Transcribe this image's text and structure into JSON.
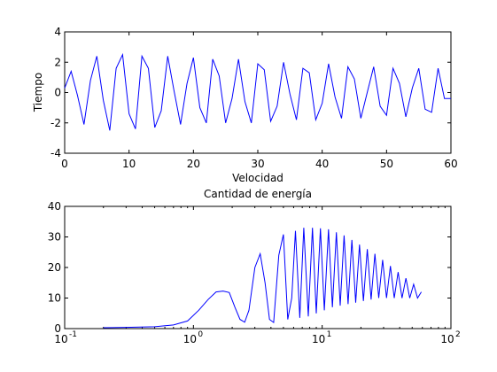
{
  "chart_data": [
    {
      "type": "line",
      "title": "",
      "xlabel": "Velocidad",
      "ylabel": "Tiempo",
      "xscale": "linear",
      "xlim": [
        0,
        60
      ],
      "ylim": [
        -4,
        4
      ],
      "xticks": [
        0,
        10,
        20,
        30,
        40,
        50,
        60
      ],
      "yticks": [
        -4,
        -2,
        0,
        2,
        4
      ],
      "grid": false,
      "legend": "none",
      "color": "#0000ff",
      "x": [
        0,
        1.0,
        2.0,
        3.0,
        4.0,
        5.0,
        6.0,
        7.0,
        8.0,
        9.0,
        10.0,
        11.0,
        12.0,
        13.0,
        14.0,
        15.0,
        16.0,
        17.0,
        18.0,
        19.0,
        20.0,
        21.0,
        22.0,
        23.0,
        24.0,
        25.0,
        26.0,
        27.0,
        28.0,
        29.0,
        30.0,
        31.0,
        32.0,
        33.0,
        34.0,
        35.0,
        36.0,
        37.0,
        38.0,
        39.0,
        40.0,
        41.0,
        42.0,
        43.0,
        44.0,
        45.0,
        46.0,
        47.0,
        48.0,
        49.0,
        50.0,
        51.0,
        52.0,
        53.0,
        54.0,
        55.0,
        56.0,
        57.0,
        58.0,
        59.0,
        60.0
      ],
      "y": [
        0.3,
        1.4,
        -0.2,
        -2.1,
        0.8,
        2.4,
        -0.5,
        -2.5,
        1.6,
        2.5,
        -1.4,
        -2.4,
        2.4,
        1.6,
        -2.3,
        -1.2,
        2.4,
        0.1,
        -2.1,
        0.6,
        2.3,
        -1.0,
        -2.0,
        2.2,
        1.1,
        -2.0,
        -0.4,
        2.2,
        -0.6,
        -2.0,
        1.9,
        1.5,
        -1.9,
        -0.9,
        2.0,
        -0.1,
        -1.8,
        1.6,
        1.3,
        -1.8,
        -0.7,
        1.9,
        -0.3,
        -1.7,
        1.7,
        0.9,
        -1.7,
        0.0,
        1.7,
        -0.9,
        -1.5,
        1.6,
        0.6,
        -1.6,
        0.3,
        1.6,
        -1.1,
        -1.3,
        1.6,
        -0.4,
        -0.4
      ]
    },
    {
      "type": "line",
      "title": "Cantidad de energía",
      "xlabel": "",
      "ylabel": "",
      "xscale": "log",
      "xlim": [
        0.1,
        100
      ],
      "ylim": [
        0,
        40
      ],
      "xticks": [
        0.1,
        1,
        10,
        100
      ],
      "xtick_labels": [
        [
          "10",
          "-1"
        ],
        [
          "10",
          "0"
        ],
        [
          "10",
          "1"
        ],
        [
          "10",
          "2"
        ]
      ],
      "yticks": [
        0,
        10,
        20,
        30,
        40
      ],
      "grid": false,
      "legend": "none",
      "color": "#0000ff",
      "x": [
        0.2,
        0.3,
        0.5,
        0.7,
        0.9,
        1.1,
        1.3,
        1.5,
        1.7,
        1.9,
        2.1,
        2.3,
        2.5,
        2.7,
        3.0,
        3.3,
        3.6,
        3.9,
        4.2,
        4.6,
        5.0,
        5.4,
        5.8,
        6.2,
        6.7,
        7.2,
        7.8,
        8.4,
        9.0,
        9.7,
        10.4,
        11.2,
        12.0,
        12.9,
        13.8,
        14.8,
        15.9,
        17.0,
        18.2,
        19.5,
        20.9,
        22.4,
        24.0,
        25.7,
        27.5,
        29.5,
        31.6,
        33.9,
        36.3,
        38.9,
        41.7,
        44.7,
        47.9,
        51.3,
        55.0,
        58.9
      ],
      "y": [
        0.3,
        0.4,
        0.6,
        1.2,
        2.5,
        6.0,
        9.5,
        12.0,
        12.3,
        11.8,
        7.0,
        3.0,
        2.1,
        6.0,
        20.0,
        24.5,
        15.0,
        3.0,
        2.0,
        24.0,
        30.8,
        3.0,
        10.0,
        32.0,
        3.5,
        33.0,
        4.0,
        33.0,
        5.0,
        32.8,
        6.0,
        32.5,
        7.0,
        31.5,
        7.5,
        30.5,
        8.0,
        29.0,
        8.5,
        27.5,
        9.0,
        26.0,
        9.5,
        24.5,
        10.0,
        22.5,
        10.0,
        20.5,
        10.0,
        18.5,
        10.0,
        16.5,
        10.0,
        14.5,
        10.0,
        12.0
      ]
    }
  ]
}
